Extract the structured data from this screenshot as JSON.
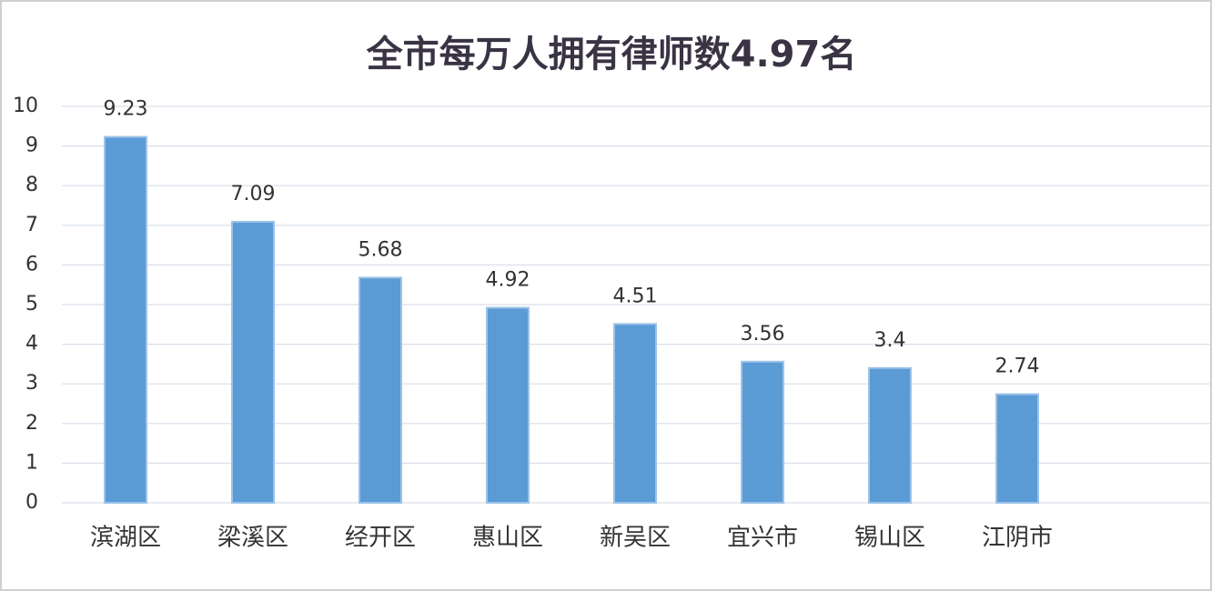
{
  "chart_data": {
    "type": "bar",
    "title": "全市每万人拥有律师数4.97名",
    "categories": [
      "滨湖区",
      "梁溪区",
      "经开区",
      "惠山区",
      "新吴区",
      "宜兴市",
      "锡山区",
      "江阴市"
    ],
    "values": [
      9.23,
      7.09,
      5.68,
      4.92,
      4.51,
      3.56,
      3.4,
      2.74
    ],
    "color": "#5b9bd5",
    "ylim": [
      0,
      10
    ],
    "yticks": [
      0,
      1,
      2,
      3,
      4,
      5,
      6,
      7,
      8,
      9,
      10
    ],
    "grid": true
  }
}
